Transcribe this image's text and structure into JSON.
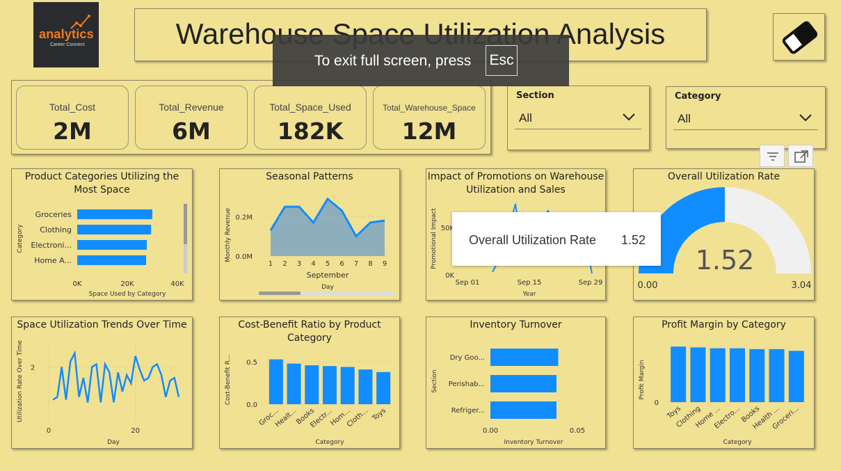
{
  "header": {
    "logo_text": "analytics",
    "logo_subtext": "Career Connect",
    "title": "Warehouse Space Utilization Analysis",
    "eraser_icon": "eraser-icon"
  },
  "fullscreen_toast": {
    "message": "To exit full screen, press",
    "key": "Esc"
  },
  "kpis": [
    {
      "label": "Total_Cost",
      "value": "2M"
    },
    {
      "label": "Total_Revenue",
      "value": "6M"
    },
    {
      "label": "Total_Space_Used",
      "value": "182K"
    },
    {
      "label": "Total_Warehouse_Space",
      "value": "12M"
    }
  ],
  "slicers": {
    "section": {
      "label": "Section",
      "value": "All"
    },
    "category": {
      "label": "Category",
      "value": "All"
    }
  },
  "visual_header_icons": [
    "filter-icon",
    "focus-mode-icon"
  ],
  "tooltip": {
    "label": "Overall Utilization Rate",
    "value": "1.52"
  },
  "chart_data": [
    {
      "id": "product-categories-space",
      "type": "bar",
      "orientation": "horizontal",
      "title": "Product Categories Utilizing the Most Space",
      "xlabel": "Space Used by Category",
      "ylabel": "Category",
      "categories": [
        "Groceries",
        "Clothing",
        "Electroni...",
        "Home A..."
      ],
      "values": [
        30000,
        29500,
        27800,
        27500
      ],
      "xlim": [
        0,
        40000
      ],
      "xticks": [
        "0K",
        "20K",
        "40K"
      ],
      "color": "#118dff"
    },
    {
      "id": "seasonal-patterns",
      "type": "area",
      "title": "Seasonal Patterns",
      "xlabel": "Day",
      "ylabel": "Monthly Revenue",
      "x_caption": "September",
      "x": [
        1,
        2,
        3,
        4,
        5,
        6,
        7,
        8,
        9
      ],
      "values": [
        130000,
        250000,
        250000,
        170000,
        290000,
        230000,
        100000,
        170000,
        180000
      ],
      "ylim": [
        0,
        300000
      ],
      "yticks": [
        "0.0M",
        "0.2M"
      ],
      "color": "#7ba6c4",
      "line_color": "#118dff"
    },
    {
      "id": "promotions-impact",
      "type": "line",
      "title": "Impact of Promotions on Warehouse Utilization and Sales",
      "xlabel": "Year",
      "ylabel": "Promotional Impact",
      "xticks": [
        "Sep 01",
        "Sep 15",
        "Sep 29"
      ],
      "yticks": [
        "0K",
        "50K"
      ],
      "color": "#118dff"
    },
    {
      "id": "overall-utilization",
      "type": "gauge",
      "title": "Overall Utilization Rate",
      "value": 1.52,
      "value_label": "1.52",
      "min": 0,
      "max": 3.04,
      "min_label": "0.00",
      "max_label": "3.04",
      "fill_color": "#118dff",
      "track_color": "#f0f0f0"
    },
    {
      "id": "space-utilization-trends",
      "type": "line",
      "title": "Space Utilization Trends Over Time",
      "xlabel": "Day",
      "ylabel": "Utilization Rate Over Time",
      "x": [
        1,
        2,
        3,
        4,
        5,
        6,
        7,
        8,
        9,
        10,
        11,
        12,
        13,
        14,
        15,
        16,
        17,
        18,
        19,
        20,
        21,
        22,
        23,
        24,
        25,
        26,
        27,
        28,
        29,
        30
      ],
      "values": [
        1.4,
        1.45,
        2.0,
        1.4,
        2.1,
        2.25,
        1.45,
        1.8,
        1.35,
        2.0,
        2.05,
        1.35,
        2.05,
        1.9,
        1.35,
        1.9,
        1.55,
        1.85,
        1.7,
        2.2,
        1.95,
        1.75,
        1.8,
        2.0,
        2.05,
        1.85,
        1.45,
        1.75,
        1.8,
        1.45
      ],
      "ylim": [
        1.0,
        2.4
      ],
      "yticks": [
        "2"
      ],
      "xticks": [
        "0",
        "20"
      ],
      "color": "#118dff"
    },
    {
      "id": "cost-benefit-ratio",
      "type": "bar",
      "title": "Cost-Benefit Ratio by Product Category",
      "xlabel": "Category",
      "ylabel": "Cost-Benefit R...",
      "categories": [
        "Groc...",
        "Healt...",
        "Books",
        "Electr...",
        "Hom...",
        "Cloth...",
        "Toys"
      ],
      "values": [
        0.53,
        0.48,
        0.46,
        0.45,
        0.44,
        0.41,
        0.38
      ],
      "ylim": [
        0,
        0.6
      ],
      "yticks": [
        "0.0",
        "0.5"
      ],
      "color": "#118dff"
    },
    {
      "id": "inventory-turnover",
      "type": "bar",
      "orientation": "horizontal",
      "title": "Inventory Turnover",
      "xlabel": "Inventory Turnover",
      "ylabel": "Section",
      "categories": [
        "Dry Goo...",
        "Perishab...",
        "Refriger..."
      ],
      "values": [
        0.039,
        0.038,
        0.038
      ],
      "xlim": [
        0,
        0.05
      ],
      "xticks": [
        "0.00",
        "0.05"
      ],
      "color": "#118dff"
    },
    {
      "id": "profit-margin",
      "type": "bar",
      "title": "Profit Margin by Category",
      "xlabel": "Category",
      "ylabel": "Profit Margin",
      "categories": [
        "Toys",
        "Clothing",
        "Home ...",
        "Electro...",
        "Books",
        "Health ...",
        "Groceri..."
      ],
      "values": [
        0.65,
        0.64,
        0.63,
        0.63,
        0.62,
        0.62,
        0.6
      ],
      "ylim": [
        0,
        0.7
      ],
      "yticks": [
        "0"
      ],
      "color": "#118dff"
    }
  ]
}
